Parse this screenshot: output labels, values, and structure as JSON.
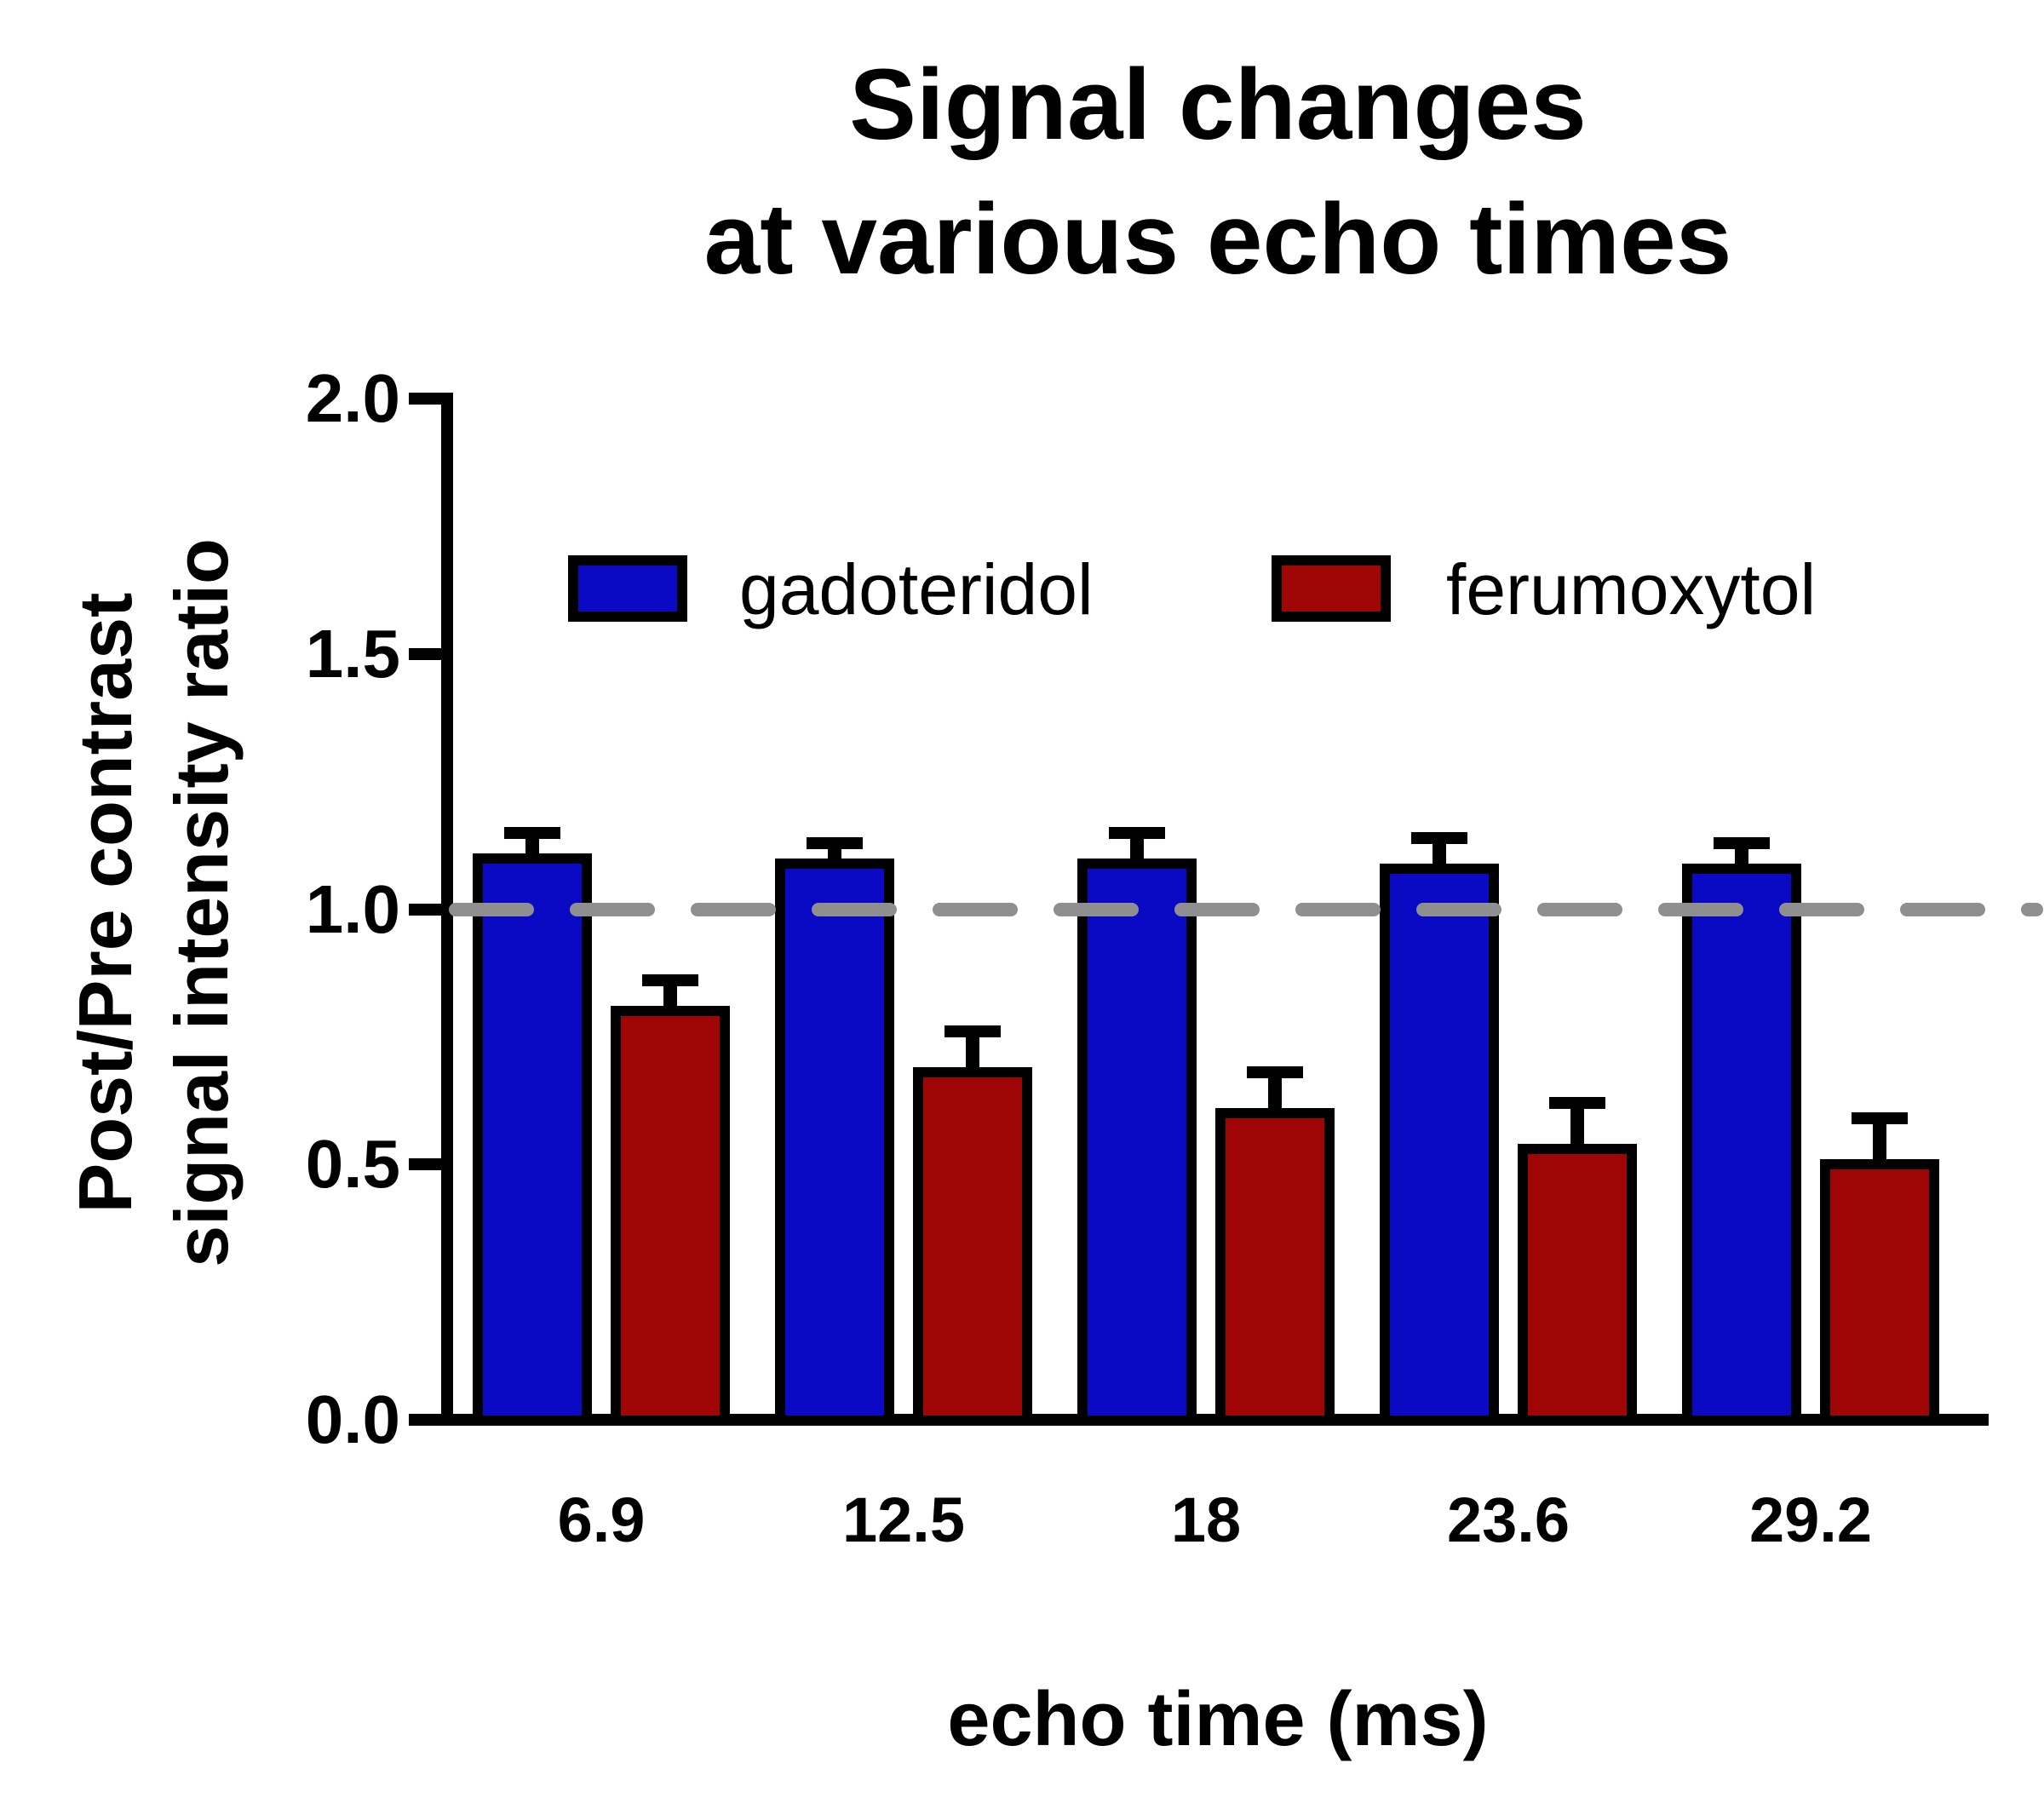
{
  "title": {
    "line1": "Signal changes",
    "line2": "at various echo times"
  },
  "legend": [
    {
      "label": "gadoteridol",
      "color": "#0a0ac4"
    },
    {
      "label": "ferumoxytol",
      "color": "#a00505"
    }
  ],
  "axes": {
    "y_label_line1": "Post/Pre contrast",
    "y_label_line2": "signal intensity ratio",
    "x_label": "echo time (ms)",
    "y_tick_labels": [
      "0.0",
      "0.5",
      "1.0",
      "1.5",
      "2.0"
    ],
    "x_tick_labels": [
      "6.9",
      "12.5",
      "18",
      "23.6",
      "29.2"
    ]
  },
  "chart_data": {
    "type": "bar",
    "title": "Signal changes at various echo times",
    "xlabel": "echo time (ms)",
    "ylabel": "Post/Pre contrast signal intensity ratio",
    "categories": [
      "6.9",
      "12.5",
      "18",
      "23.6",
      "29.2"
    ],
    "series": [
      {
        "name": "gadoteridol",
        "color": "#0a0ac4",
        "values": [
          1.1,
          1.09,
          1.09,
          1.08,
          1.08
        ],
        "errors": [
          0.05,
          0.04,
          0.06,
          0.06,
          0.05
        ]
      },
      {
        "name": "ferumoxytol",
        "color": "#a00505",
        "values": [
          0.8,
          0.68,
          0.6,
          0.53,
          0.5
        ],
        "errors": [
          0.06,
          0.08,
          0.08,
          0.09,
          0.09
        ]
      }
    ],
    "ylim": [
      0.0,
      2.0
    ],
    "y_tick_step": 0.5,
    "reference_line": 1.0,
    "reference_line_color": "#8f8f8f",
    "error_bar_color": "#000000",
    "grid": false,
    "legend_position": "inside-upper-area"
  }
}
